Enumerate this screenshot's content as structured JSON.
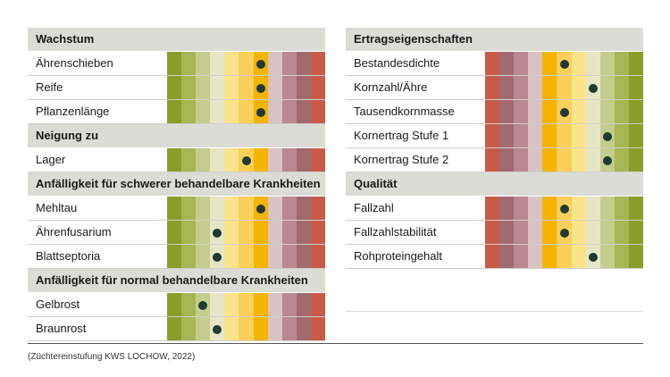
{
  "colors": {
    "scale_green_to_red": [
      "#8a9e2a",
      "#a7b654",
      "#c4cd8d",
      "#e7e6c4",
      "#fbe48c",
      "#fbd05a",
      "#f5b400",
      "#d9c2c3",
      "#b98891",
      "#a06a70",
      "#c85b45"
    ],
    "scale_red_to_green": [
      "#c85b45",
      "#a06a70",
      "#b98891",
      "#d9c2c3",
      "#f5b400",
      "#fbd05a",
      "#fbe48c",
      "#e7e6c4",
      "#c4cd8d",
      "#a7b654",
      "#8a9e2a"
    ],
    "header_bg": "#dcdcd6",
    "dot": "#1f3a35"
  },
  "left_panel": {
    "sections": [
      {
        "title": "Wachstum",
        "scale": "green_to_red",
        "rows": [
          {
            "label": "Ährenschieben",
            "score": 7
          },
          {
            "label": "Reife",
            "score": 7
          },
          {
            "label": "Pflanzenlänge",
            "score": 7
          }
        ]
      },
      {
        "title": "Neigung zu",
        "scale": "green_to_red",
        "rows": [
          {
            "label": "Lager",
            "score": 6
          }
        ]
      },
      {
        "title": "Anfälligkeit für schwerer behandelbare Krankheiten",
        "scale": "green_to_red",
        "rows": [
          {
            "label": "Mehltau",
            "score": 7
          },
          {
            "label": "Ährenfusarium",
            "score": 4
          },
          {
            "label": "Blattseptoria",
            "score": 4
          }
        ]
      },
      {
        "title": "Anfälligkeit für normal behandelbare Krankheiten",
        "scale": "green_to_red",
        "rows": [
          {
            "label": "Gelbrost",
            "score": 3
          },
          {
            "label": "Braunrost",
            "score": 4
          }
        ]
      }
    ]
  },
  "right_panel": {
    "sections": [
      {
        "title": "Ertragseigenschaften",
        "scale": "red_to_green",
        "rows": [
          {
            "label": "Bestandesdichte",
            "score": 6
          },
          {
            "label": "Kornzahl/Ähre",
            "score": 8
          },
          {
            "label": "Tausendkornmasse",
            "score": 6
          },
          {
            "label": "Kornertrag Stufe 1",
            "score": 9
          },
          {
            "label": "Kornertrag Stufe 2",
            "score": 9
          }
        ]
      },
      {
        "title": "Qualität",
        "scale": "red_to_green",
        "rows": [
          {
            "label": "Fallzahl",
            "score": 6
          },
          {
            "label": "Fallzahlstabilität",
            "score": 6
          },
          {
            "label": "Rohproteingehalt",
            "score": 8
          }
        ]
      }
    ]
  },
  "footer": {
    "source": "(Züchtereinstufung KWS LOCHOW, 2022)"
  }
}
